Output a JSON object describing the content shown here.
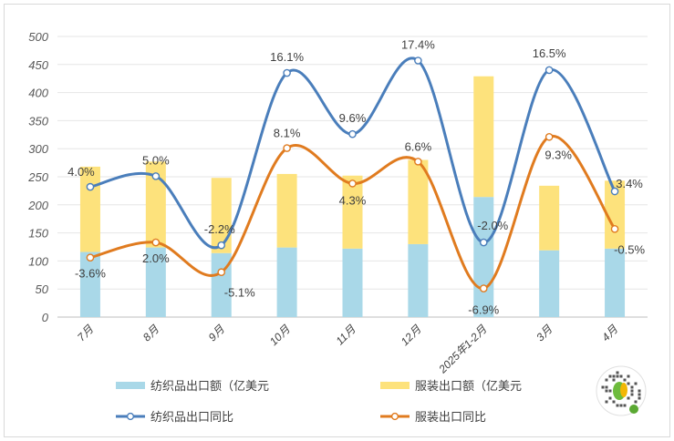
{
  "chart_data": {
    "type": "bar",
    "categories": [
      "7月",
      "8月",
      "9月",
      "10月",
      "11月",
      "12月",
      "2025年1-2月",
      "3月",
      "4月"
    ],
    "ylim": [
      0,
      500
    ],
    "yticks": [
      0,
      50,
      100,
      150,
      200,
      250,
      300,
      350,
      400,
      450,
      500
    ],
    "grid": true,
    "stacked": true,
    "series": [
      {
        "name": "纺织品出口额（亿美元",
        "kind": "bar",
        "color": "#a9d8e8",
        "values": [
          116,
          124,
          114,
          124,
          122,
          130,
          214,
          119,
          122
        ]
      },
      {
        "name": "服装出口额（亿美元",
        "kind": "bar",
        "color": "#fde27c",
        "values": [
          152,
          153,
          134,
          131,
          130,
          150,
          215,
          115,
          121
        ]
      },
      {
        "name": "纺织品出口同比",
        "kind": "line",
        "color": "#4a7ebb",
        "values": [
          232,
          251,
          128,
          435,
          326,
          457,
          133,
          440,
          224
        ],
        "labels": [
          "4.0%",
          "5.0%",
          "-2.2%",
          "16.1%",
          "9.6%",
          "17.4%",
          "-2.0%",
          "16.5%",
          "3.4%"
        ]
      },
      {
        "name": "服装出口同比",
        "kind": "line",
        "color": "#e07b1f",
        "values": [
          106,
          133,
          80,
          301,
          238,
          277,
          51,
          321,
          157
        ],
        "labels": [
          "-3.6%",
          "2.0%",
          "-5.1%",
          "8.1%",
          "4.3%",
          "6.6%",
          "-6.9%",
          "9.3%",
          "-0.5%"
        ]
      }
    ],
    "legend_position": "bottom"
  }
}
